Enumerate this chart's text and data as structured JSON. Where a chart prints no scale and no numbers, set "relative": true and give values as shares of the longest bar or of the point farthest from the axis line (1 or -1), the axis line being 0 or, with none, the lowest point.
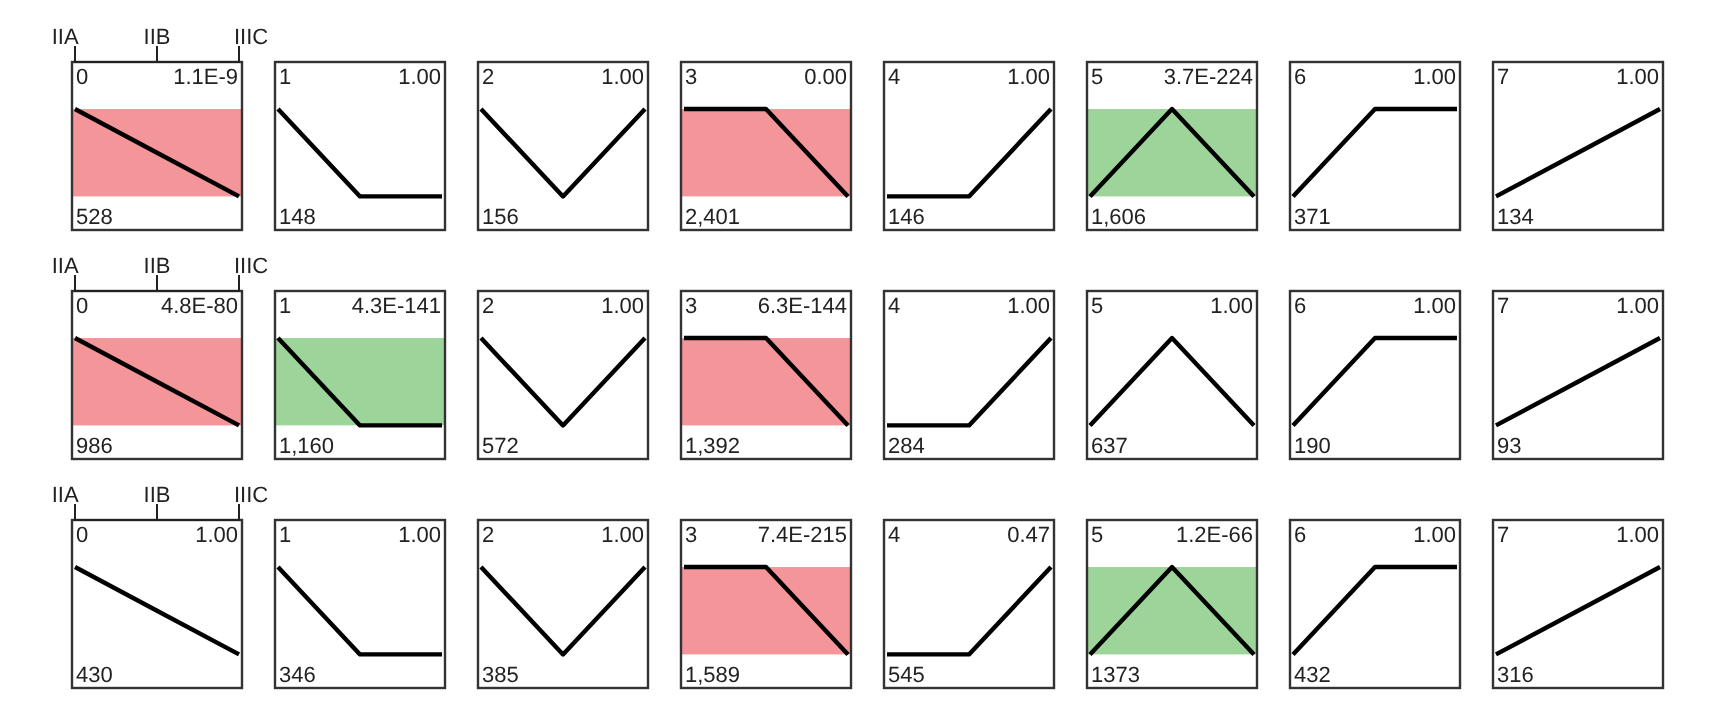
{
  "chart_data": [
    {
      "type": "line",
      "title": "0",
      "annotations": [
        "1.1E-9",
        "528"
      ],
      "categories": [
        "IIA",
        "IIB",
        "IIIC"
      ],
      "relative": true,
      "series": [
        {
          "color": "#000000",
          "values": [
            1,
            0.5,
            0
          ]
        }
      ],
      "bands": [
        {
          "axis": "y",
          "from": 0,
          "to": 1,
          "color": "#f4959a"
        }
      ],
      "tick_labels": "x"
    },
    {
      "type": "line",
      "title": "1",
      "annotations": [
        "1.00",
        "148"
      ],
      "categories": [
        null,
        null,
        null
      ],
      "relative": true,
      "series": [
        {
          "color": "#000000",
          "values": [
            1,
            0,
            0
          ]
        }
      ],
      "tick_labels": false
    },
    {
      "type": "line",
      "title": "2",
      "annotations": [
        "1.00",
        "156"
      ],
      "categories": [
        null,
        null,
        null
      ],
      "relative": true,
      "series": [
        {
          "color": "#000000",
          "values": [
            1,
            0,
            1
          ]
        }
      ],
      "tick_labels": false
    },
    {
      "type": "line",
      "title": "3",
      "annotations": [
        "0.00",
        "2,401"
      ],
      "categories": [
        null,
        null,
        null
      ],
      "relative": true,
      "series": [
        {
          "color": "#000000",
          "values": [
            1,
            1,
            0
          ]
        }
      ],
      "bands": [
        {
          "axis": "y",
          "from": 0,
          "to": 1,
          "color": "#f4959a"
        }
      ],
      "tick_labels": false
    },
    {
      "type": "line",
      "title": "4",
      "annotations": [
        "1.00",
        "146"
      ],
      "categories": [
        null,
        null,
        null
      ],
      "relative": true,
      "series": [
        {
          "color": "#000000",
          "values": [
            0,
            0,
            1
          ]
        }
      ],
      "tick_labels": false
    },
    {
      "type": "line",
      "title": "5",
      "annotations": [
        "3.7E-224",
        "1,606"
      ],
      "categories": [
        null,
        null,
        null
      ],
      "relative": true,
      "series": [
        {
          "color": "#000000",
          "values": [
            0,
            1,
            0
          ]
        }
      ],
      "bands": [
        {
          "axis": "y",
          "from": 0,
          "to": 1,
          "color": "#9dd49a"
        }
      ],
      "tick_labels": false
    },
    {
      "type": "line",
      "title": "6",
      "annotations": [
        "1.00",
        "371"
      ],
      "categories": [
        null,
        null,
        null
      ],
      "relative": true,
      "series": [
        {
          "color": "#000000",
          "values": [
            0,
            1,
            1
          ]
        }
      ],
      "tick_labels": false
    },
    {
      "type": "line",
      "title": "7",
      "annotations": [
        "1.00",
        "134"
      ],
      "categories": [
        null,
        null,
        null
      ],
      "relative": true,
      "series": [
        {
          "color": "#000000",
          "values": [
            0,
            0.5,
            1
          ]
        }
      ],
      "tick_labels": false
    },
    {
      "type": "line",
      "title": "0",
      "annotations": [
        "4.8E-80",
        "986"
      ],
      "categories": [
        "IIA",
        "IIB",
        "IIIC"
      ],
      "relative": true,
      "series": [
        {
          "color": "#000000",
          "values": [
            1,
            0.5,
            0
          ]
        }
      ],
      "bands": [
        {
          "axis": "y",
          "from": 0,
          "to": 1,
          "color": "#f4959a"
        }
      ],
      "tick_labels": "x"
    },
    {
      "type": "line",
      "title": "1",
      "annotations": [
        "4.3E-141",
        "1,160"
      ],
      "categories": [
        null,
        null,
        null
      ],
      "relative": true,
      "series": [
        {
          "color": "#000000",
          "values": [
            1,
            0,
            0
          ]
        }
      ],
      "bands": [
        {
          "axis": "y",
          "from": 0,
          "to": 1,
          "color": "#9dd49a"
        }
      ],
      "tick_labels": false
    },
    {
      "type": "line",
      "title": "2",
      "annotations": [
        "1.00",
        "572"
      ],
      "categories": [
        null,
        null,
        null
      ],
      "relative": true,
      "series": [
        {
          "color": "#000000",
          "values": [
            1,
            0,
            1
          ]
        }
      ],
      "tick_labels": false
    },
    {
      "type": "line",
      "title": "3",
      "annotations": [
        "6.3E-144",
        "1,392"
      ],
      "categories": [
        null,
        null,
        null
      ],
      "relative": true,
      "series": [
        {
          "color": "#000000",
          "values": [
            1,
            1,
            0
          ]
        }
      ],
      "bands": [
        {
          "axis": "y",
          "from": 0,
          "to": 1,
          "color": "#f4959a"
        }
      ],
      "tick_labels": false
    },
    {
      "type": "line",
      "title": "4",
      "annotations": [
        "1.00",
        "284"
      ],
      "categories": [
        null,
        null,
        null
      ],
      "relative": true,
      "series": [
        {
          "color": "#000000",
          "values": [
            0,
            0,
            1
          ]
        }
      ],
      "tick_labels": false
    },
    {
      "type": "line",
      "title": "5",
      "annotations": [
        "1.00",
        "637"
      ],
      "categories": [
        null,
        null,
        null
      ],
      "relative": true,
      "series": [
        {
          "color": "#000000",
          "values": [
            0,
            1,
            0
          ]
        }
      ],
      "tick_labels": false
    },
    {
      "type": "line",
      "title": "6",
      "annotations": [
        "1.00",
        "190"
      ],
      "categories": [
        null,
        null,
        null
      ],
      "relative": true,
      "series": [
        {
          "color": "#000000",
          "values": [
            0,
            1,
            1
          ]
        }
      ],
      "tick_labels": false
    },
    {
      "type": "line",
      "title": "7",
      "annotations": [
        "1.00",
        "93"
      ],
      "categories": [
        null,
        null,
        null
      ],
      "relative": true,
      "series": [
        {
          "color": "#000000",
          "values": [
            0,
            0.5,
            1
          ]
        }
      ],
      "tick_labels": false
    },
    {
      "type": "line",
      "title": "0",
      "annotations": [
        "1.00",
        "430"
      ],
      "categories": [
        "IIA",
        "IIB",
        "IIIC"
      ],
      "relative": true,
      "series": [
        {
          "color": "#000000",
          "values": [
            1,
            0.5,
            0
          ]
        }
      ],
      "tick_labels": "x"
    },
    {
      "type": "line",
      "title": "1",
      "annotations": [
        "1.00",
        "346"
      ],
      "categories": [
        null,
        null,
        null
      ],
      "relative": true,
      "series": [
        {
          "color": "#000000",
          "values": [
            1,
            0,
            0
          ]
        }
      ],
      "tick_labels": false
    },
    {
      "type": "line",
      "title": "2",
      "annotations": [
        "1.00",
        "385"
      ],
      "categories": [
        null,
        null,
        null
      ],
      "relative": true,
      "series": [
        {
          "color": "#000000",
          "values": [
            1,
            0,
            1
          ]
        }
      ],
      "tick_labels": false
    },
    {
      "type": "line",
      "title": "3",
      "annotations": [
        "7.4E-215",
        "1,589"
      ],
      "categories": [
        null,
        null,
        null
      ],
      "relative": true,
      "series": [
        {
          "color": "#000000",
          "values": [
            1,
            1,
            0
          ]
        }
      ],
      "bands": [
        {
          "axis": "y",
          "from": 0,
          "to": 1,
          "color": "#f4959a"
        }
      ],
      "tick_labels": false
    },
    {
      "type": "line",
      "title": "4",
      "annotations": [
        "0.47",
        "545"
      ],
      "categories": [
        null,
        null,
        null
      ],
      "relative": true,
      "series": [
        {
          "color": "#000000",
          "values": [
            0,
            0,
            1
          ]
        }
      ],
      "tick_labels": false
    },
    {
      "type": "line",
      "title": "5",
      "annotations": [
        "1.2E-66",
        "1373"
      ],
      "categories": [
        null,
        null,
        null
      ],
      "relative": true,
      "series": [
        {
          "color": "#000000",
          "values": [
            0,
            1,
            0
          ]
        }
      ],
      "bands": [
        {
          "axis": "y",
          "from": 0,
          "to": 1,
          "color": "#9dd49a"
        }
      ],
      "tick_labels": false
    },
    {
      "type": "line",
      "title": "6",
      "annotations": [
        "1.00",
        "432"
      ],
      "categories": [
        null,
        null,
        null
      ],
      "relative": true,
      "series": [
        {
          "color": "#000000",
          "values": [
            0,
            1,
            1
          ]
        }
      ],
      "tick_labels": false
    },
    {
      "type": "line",
      "title": "7",
      "annotations": [
        "1.00",
        "316"
      ],
      "categories": [
        null,
        null,
        null
      ],
      "relative": true,
      "series": [
        {
          "color": "#000000",
          "values": [
            0,
            0.5,
            1
          ]
        }
      ],
      "tick_labels": false
    }
  ]
}
